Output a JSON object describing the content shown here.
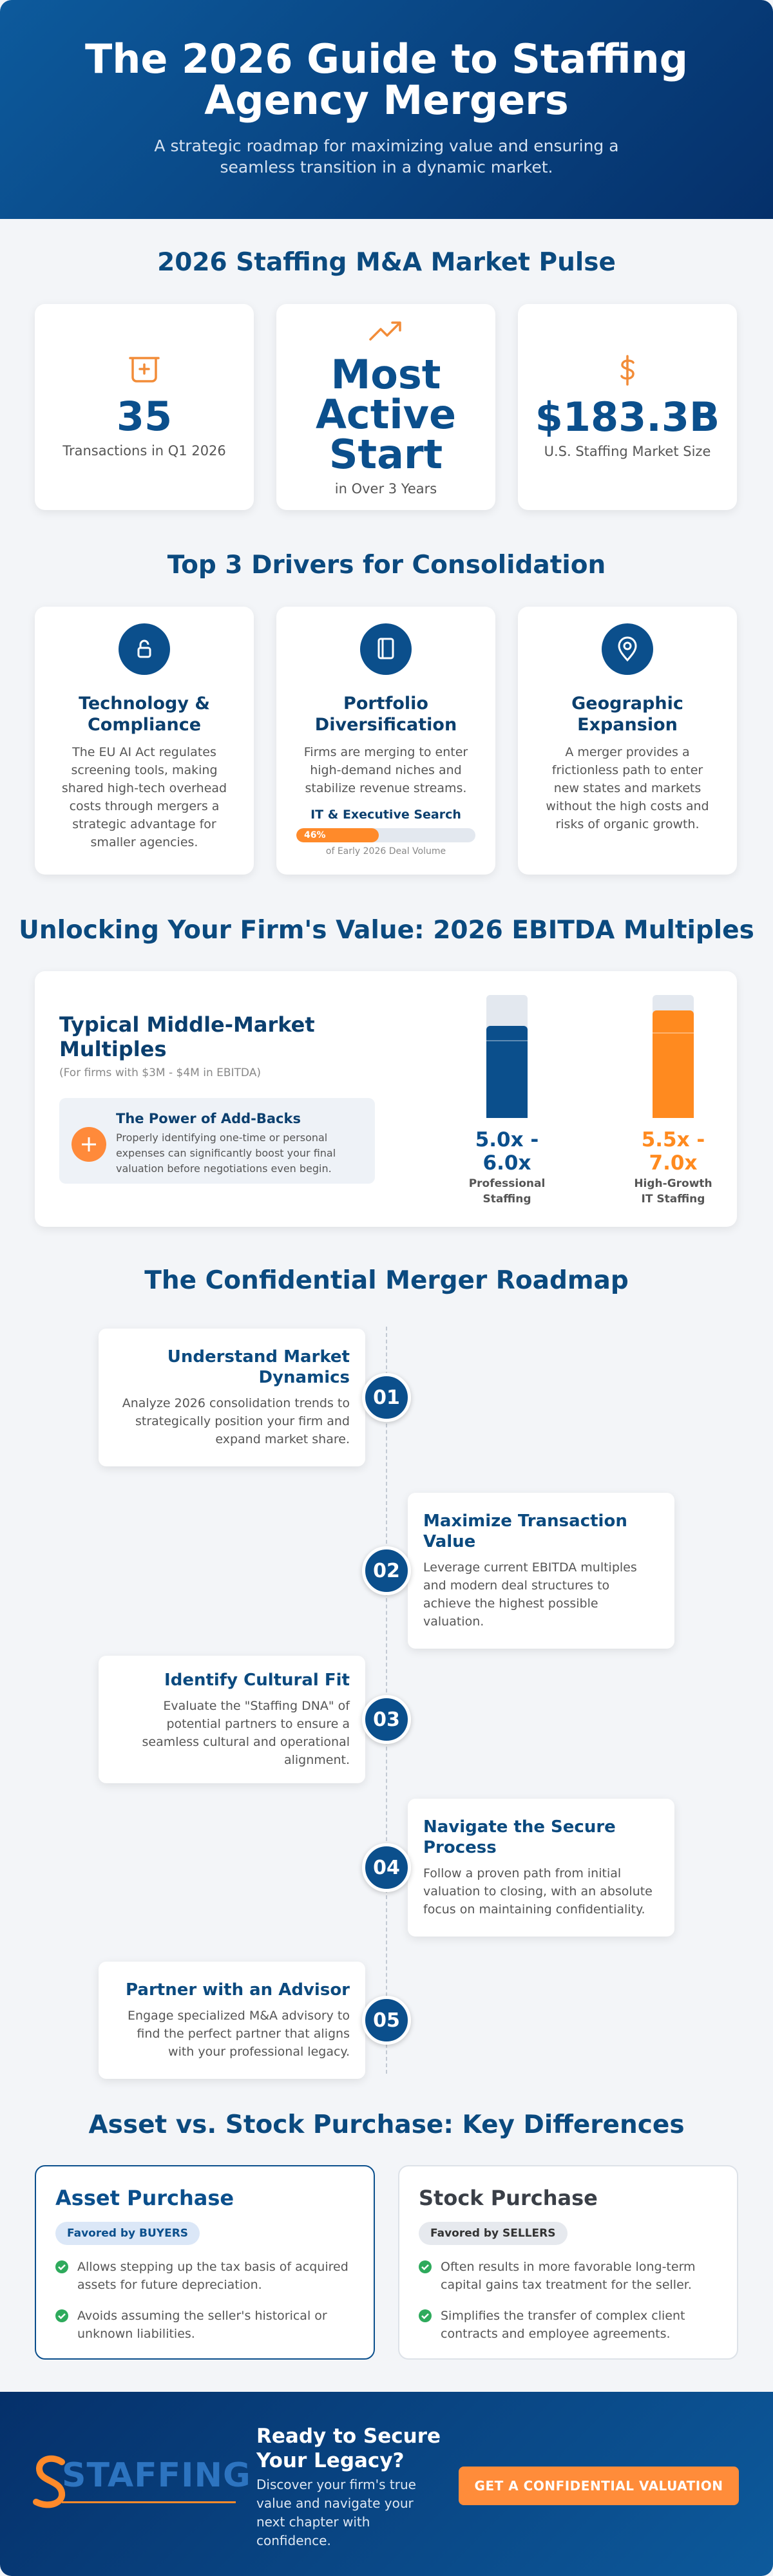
{
  "header": {
    "title": "The 2026 Guide to Staffing Agency Mergers",
    "subtitle": "A strategic roadmap for maximizing value and ensuring a seamless transition in a dynamic market."
  },
  "market_pulse": {
    "title": "2026 Staffing M&A Market Pulse",
    "stats": [
      {
        "value": "35",
        "label": "Transactions in Q1 2026"
      },
      {
        "value": "Most Active Start",
        "label": "in Over 3 Years"
      },
      {
        "value": "$183.3B",
        "label": "U.S. Staffing Market Size"
      }
    ]
  },
  "drivers": {
    "title": "Top 3 Drivers for Consolidation",
    "items": [
      {
        "title": "Technology & Compliance",
        "text": "The EU AI Act regulates screening tools, making shared high-tech overhead costs through mergers a strategic advantage for smaller agencies."
      },
      {
        "title": "Portfolio Diversification",
        "text": "Firms are merging to enter high-demand niches and stabilize revenue streams.",
        "highlight": {
          "title": "IT & Executive Search",
          "value": 46,
          "value_label": "46%",
          "caption": "of Early 2026 Deal Volume"
        }
      },
      {
        "title": "Geographic Expansion",
        "text": "A merger provides a frictionless path to enter new states and markets without the high costs and risks of organic growth."
      }
    ]
  },
  "ebitda": {
    "title": "Unlocking Your Firm's Value: 2026 EBITDA Multiples",
    "card_title": "Typical Middle-Market Multiples",
    "card_subtitle": "(For firms with $3M - $4M in EBITDA)",
    "tip": {
      "title": "The Power of Add-Backs",
      "text": "Properly identifying one-time or personal expenses can significantly boost your final valuation before negotiations even begin."
    },
    "chart": {
      "type": "range-bar",
      "ylim": [
        0,
        8
      ],
      "categories": [
        "Professional Staffing",
        "High-Growth IT Staffing"
      ],
      "low": [
        5.0,
        5.5
      ],
      "high": [
        6.0,
        7.0
      ],
      "value_labels": [
        "5.0x - 6.0x",
        "5.5x - 7.0x"
      ],
      "colors": [
        "#0b4f8c",
        "#ff8a1f"
      ]
    }
  },
  "roadmap": {
    "title": "The Confidential Merger Roadmap",
    "steps": [
      {
        "number": "01",
        "title": "Understand Market Dynamics",
        "text": "Analyze 2026 consolidation trends to strategically position your firm and expand market share."
      },
      {
        "number": "02",
        "title": "Maximize Transaction Value",
        "text": "Leverage current EBITDA multiples and modern deal structures to achieve the highest possible valuation."
      },
      {
        "number": "03",
        "title": "Identify Cultural Fit",
        "text": "Evaluate the \"Staffing DNA\" of potential partners to ensure a seamless cultural and operational alignment."
      },
      {
        "number": "04",
        "title": "Navigate the Secure Process",
        "text": "Follow a proven path from initial valuation to closing, with an absolute focus on maintaining confidentiality."
      },
      {
        "number": "05",
        "title": "Partner with an Advisor",
        "text": "Engage specialized M&A advisory to find the perfect partner that aligns with your professional legacy."
      }
    ]
  },
  "comparison": {
    "title": "Asset vs. Stock Purchase: Key Differences",
    "options": [
      {
        "title": "Asset Purchase",
        "badge": "Favored by BUYERS",
        "points": [
          "Allows stepping up the tax basis of acquired assets for future depreciation.",
          "Avoids assuming the seller's historical or unknown liabilities."
        ]
      },
      {
        "title": "Stock Purchase",
        "badge": "Favored by SELLERS",
        "points": [
          "Often results in more favorable long-term capital gains tax treatment for the seller.",
          "Simplifies the transfer of complex client contracts and employee agreements."
        ]
      }
    ]
  },
  "footer": {
    "logo": "STAFFING",
    "title": "Ready to Secure Your Legacy?",
    "text": "Discover your firm's true value and navigate your next chapter with confidence.",
    "button": "GET A CONFIDENTIAL VALUATION"
  }
}
